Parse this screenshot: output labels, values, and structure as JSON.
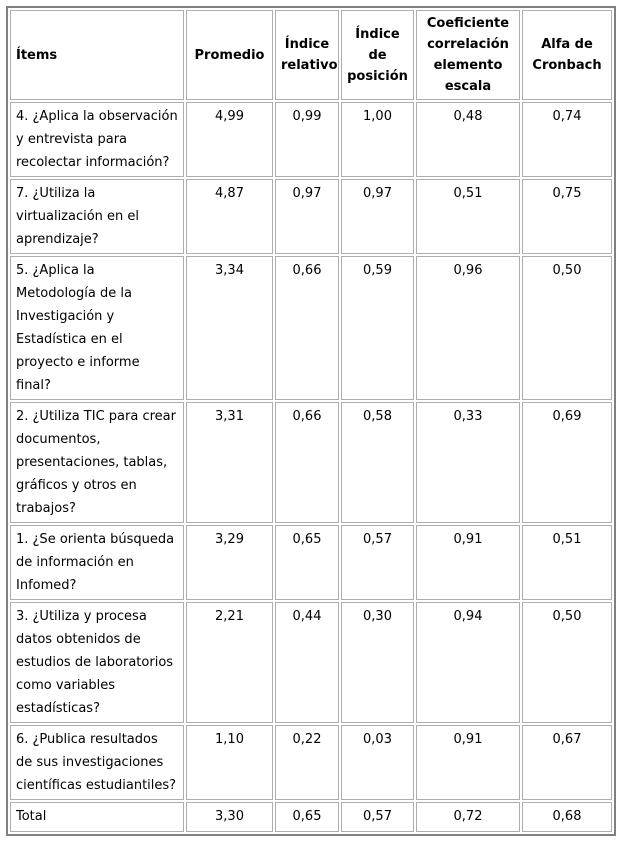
{
  "colors": {
    "background": "#ffffff",
    "text": "#000000",
    "cell_border": "#adadad",
    "outer_border": "#808080"
  },
  "table": {
    "columns": [
      "Ítems",
      "Promedio",
      "Índice relativo",
      "Índice de posición",
      "Coeficiente correlación elemento escala",
      "Alfa de Cronbach"
    ],
    "rows": [
      {
        "item": "4. ¿Aplica la observación y entrevista para recolectar información?",
        "values": [
          "4,99",
          "0,99",
          "1,00",
          "0,48",
          "0,74"
        ]
      },
      {
        "item": "7. ¿Utiliza la virtualización en el aprendizaje?",
        "values": [
          "4,87",
          "0,97",
          "0,97",
          "0,51",
          "0,75"
        ]
      },
      {
        "item": "5. ¿Aplica la Metodología de la Investigación y Estadística en el proyecto e informe final?",
        "values": [
          "3,34",
          "0,66",
          "0,59",
          "0,96",
          "0,50"
        ]
      },
      {
        "item": "2. ¿Utiliza TIC para crear documentos, presentaciones, tablas, gráficos y otros en trabajos?",
        "values": [
          "3,31",
          "0,66",
          "0,58",
          "0,33",
          "0,69"
        ]
      },
      {
        "item": "1. ¿Se orienta búsqueda de información en Infomed?",
        "values": [
          "3,29",
          "0,65",
          "0,57",
          "0,91",
          "0,51"
        ]
      },
      {
        "item": "3. ¿Utiliza y procesa datos obtenidos de estudios de laboratorios como variables estadísticas?",
        "values": [
          "2,21",
          "0,44",
          "0,30",
          "0,94",
          "0,50"
        ]
      },
      {
        "item": "6. ¿Publica resultados de sus investigaciones científicas estudiantiles?",
        "values": [
          "1,10",
          "0,22",
          "0,03",
          "0,91",
          "0,67"
        ]
      }
    ],
    "total": {
      "label": "Total",
      "values": [
        "3,30",
        "0,65",
        "0,57",
        "0,72",
        "0,68"
      ]
    }
  }
}
